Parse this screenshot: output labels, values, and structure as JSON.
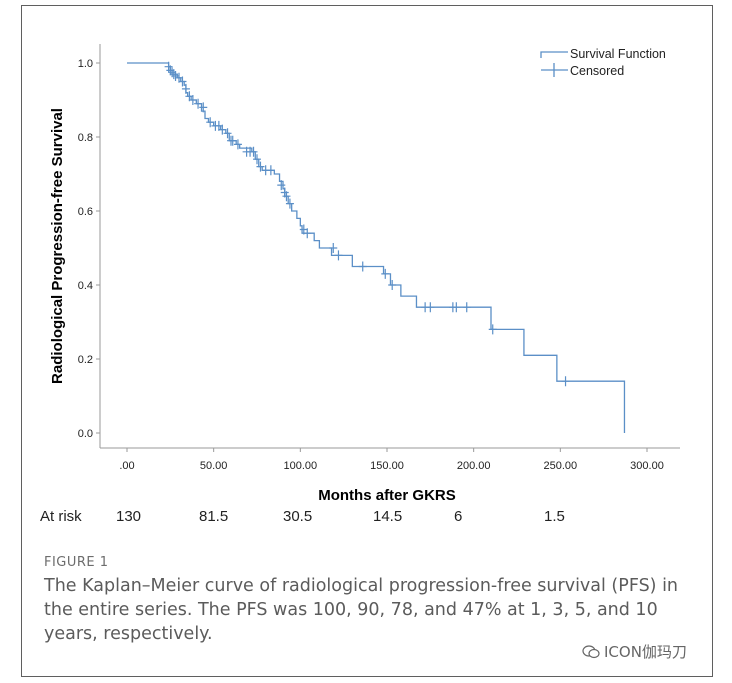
{
  "chart_data": {
    "type": "line",
    "xlabel": "Months after GKRS",
    "ylabel": "Radiological Progression-free Survival",
    "xlim": [
      0,
      300
    ],
    "ylim": [
      0,
      1
    ],
    "xticks": [
      ".00",
      "50.00",
      "100.00",
      "150.00",
      "200.00",
      "250.00",
      "300.00"
    ],
    "yticks": [
      "0.0",
      "0.2",
      "0.4",
      "0.6",
      "0.8",
      "1.0"
    ],
    "xtick_values": [
      0,
      50,
      100,
      150,
      200,
      250,
      300
    ],
    "ytick_values": [
      0,
      0.2,
      0.4,
      0.6,
      0.8,
      1.0
    ],
    "legend_position": "top-right",
    "legend": [
      "Survival Function",
      "Censored"
    ],
    "series": [
      {
        "name": "Survival Function",
        "color": "#5b8fc7",
        "steps": [
          [
            0,
            1.0
          ],
          [
            24,
            0.99
          ],
          [
            25,
            0.98
          ],
          [
            26,
            0.97
          ],
          [
            29,
            0.96
          ],
          [
            31,
            0.95
          ],
          [
            33,
            0.94
          ],
          [
            34,
            0.92
          ],
          [
            35,
            0.91
          ],
          [
            37,
            0.9
          ],
          [
            40,
            0.89
          ],
          [
            43,
            0.87
          ],
          [
            45,
            0.85
          ],
          [
            47,
            0.84
          ],
          [
            50,
            0.83
          ],
          [
            54,
            0.82
          ],
          [
            57,
            0.81
          ],
          [
            59,
            0.79
          ],
          [
            63,
            0.78
          ],
          [
            65,
            0.77
          ],
          [
            72,
            0.76
          ],
          [
            74,
            0.74
          ],
          [
            76,
            0.72
          ],
          [
            78,
            0.71
          ],
          [
            85,
            0.7
          ],
          [
            88,
            0.68
          ],
          [
            90,
            0.66
          ],
          [
            91,
            0.64
          ],
          [
            93,
            0.62
          ],
          [
            95,
            0.6
          ],
          [
            98,
            0.58
          ],
          [
            100,
            0.56
          ],
          [
            101,
            0.54
          ],
          [
            108,
            0.52
          ],
          [
            111,
            0.5
          ],
          [
            118,
            0.48
          ],
          [
            130,
            0.45
          ],
          [
            148,
            0.43
          ],
          [
            152,
            0.4
          ],
          [
            158,
            0.37
          ],
          [
            167,
            0.34
          ],
          [
            210,
            0.28
          ],
          [
            229,
            0.21
          ],
          [
            248,
            0.14
          ],
          [
            287,
            0.0
          ]
        ]
      },
      {
        "name": "Censored",
        "color": "#5b8fc7",
        "points": [
          [
            24,
            0.99
          ],
          [
            25,
            0.98
          ],
          [
            26,
            0.975
          ],
          [
            27,
            0.97
          ],
          [
            28,
            0.965
          ],
          [
            30,
            0.96
          ],
          [
            32,
            0.95
          ],
          [
            34,
            0.93
          ],
          [
            36,
            0.91
          ],
          [
            38,
            0.9
          ],
          [
            41,
            0.89
          ],
          [
            44,
            0.88
          ],
          [
            48,
            0.84
          ],
          [
            51,
            0.83
          ],
          [
            53,
            0.83
          ],
          [
            55,
            0.82
          ],
          [
            58,
            0.81
          ],
          [
            60,
            0.79
          ],
          [
            61,
            0.79
          ],
          [
            64,
            0.78
          ],
          [
            69,
            0.76
          ],
          [
            71,
            0.76
          ],
          [
            73,
            0.76
          ],
          [
            75,
            0.74
          ],
          [
            77,
            0.72
          ],
          [
            80,
            0.71
          ],
          [
            83,
            0.71
          ],
          [
            89,
            0.67
          ],
          [
            91,
            0.65
          ],
          [
            92,
            0.64
          ],
          [
            94,
            0.62
          ],
          [
            102,
            0.55
          ],
          [
            104,
            0.54
          ],
          [
            119,
            0.5
          ],
          [
            122,
            0.48
          ],
          [
            136,
            0.45
          ],
          [
            149,
            0.43
          ],
          [
            153,
            0.4
          ],
          [
            172,
            0.34
          ],
          [
            175,
            0.34
          ],
          [
            188,
            0.34
          ],
          [
            190,
            0.34
          ],
          [
            196,
            0.34
          ],
          [
            211,
            0.28
          ],
          [
            253,
            0.14
          ]
        ]
      }
    ]
  },
  "at_risk": {
    "label": "At risk",
    "values": [
      "130",
      "81.5",
      "30.5",
      "14.5",
      "6",
      "1.5"
    ]
  },
  "figure": {
    "label": "FIGURE 1",
    "caption": "The Kaplan–Meier curve of radiological progression-free survival (PFS) in the entire series. The PFS was 100, 90, 78, and 47% at 1, 3, 5, and 10 years, respectively."
  },
  "watermark": {
    "text": "ICON伽玛刀",
    "icon": "wechat-icon"
  }
}
